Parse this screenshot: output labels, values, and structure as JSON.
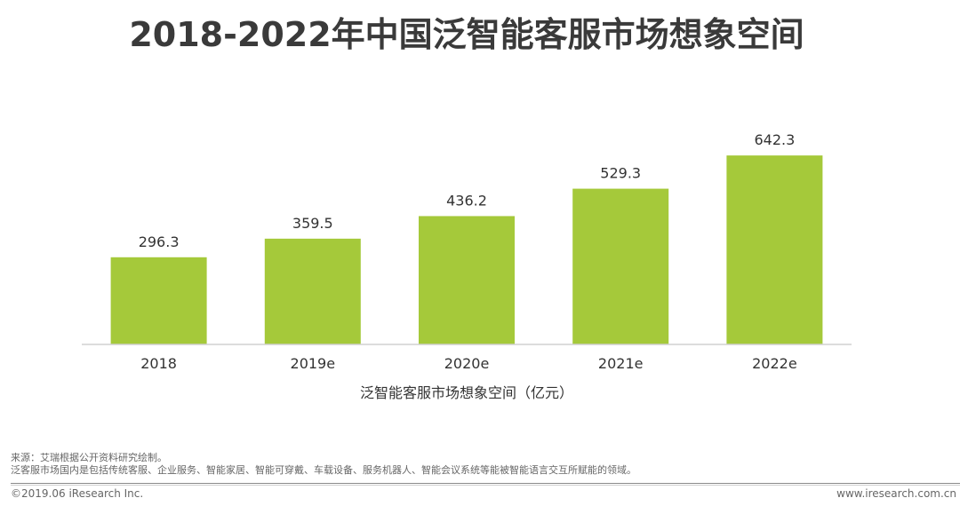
{
  "page": {
    "title": "2018-2022年中国泛智能客服市场想象空间",
    "source_line1": "来源：艾瑞根据公开资料研究绘制。",
    "source_line2": "泛客服市场国内是包括传统客服、企业服务、智能家居、智能可穿戴、车载设备、服务机器人、智能会议系统等能被智能语言交互所赋能的领域。",
    "copyright": "©2019.06 iResearch Inc.",
    "website": "www.iresearch.com.cn"
  },
  "colors": {
    "bar": "#a5c93a",
    "axis": "#d0d0d0",
    "text": "#333333"
  },
  "chart_data": {
    "type": "bar",
    "categories": [
      "2018",
      "2019e",
      "2020e",
      "2021e",
      "2022e"
    ],
    "values": [
      296.3,
      359.5,
      436.2,
      529.3,
      642.3
    ],
    "title": "",
    "xlabel": "泛智能客服市场想象空间（亿元）",
    "ylabel": "",
    "ylim": [
      0,
      700
    ],
    "grid": false,
    "legend": "none"
  }
}
